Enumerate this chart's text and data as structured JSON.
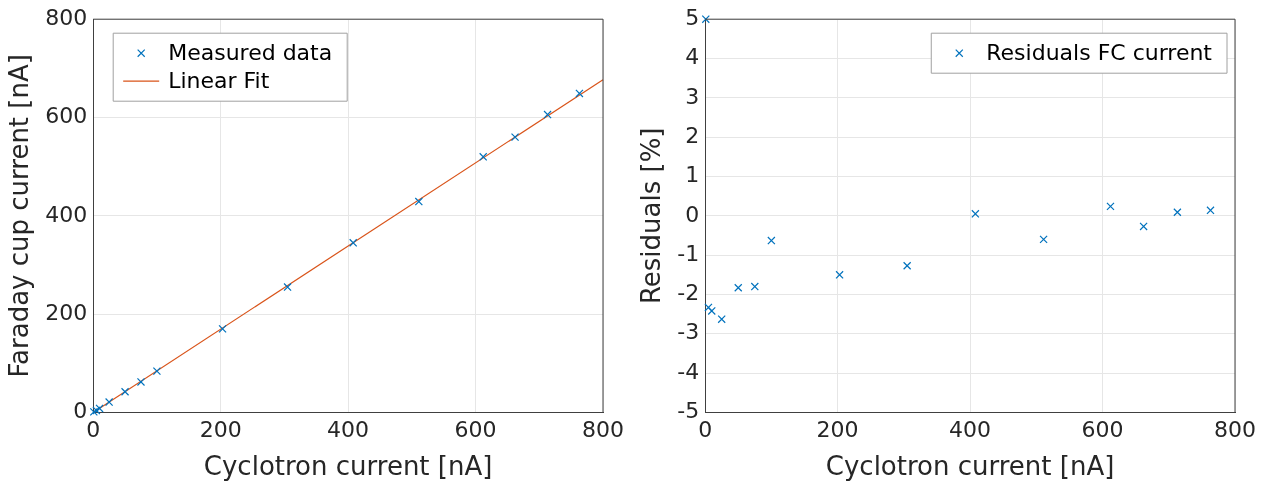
{
  "chart_data": [
    {
      "type": "scatter",
      "xlabel": "Cyclotron current [nA]",
      "ylabel": "Faraday cup current [nA]",
      "xlim": [
        0,
        800
      ],
      "ylim": [
        0,
        800
      ],
      "xticks": [
        0,
        200,
        400,
        600,
        800
      ],
      "yticks": [
        0,
        200,
        400,
        600,
        800
      ],
      "grid": true,
      "legend": "top left",
      "series": [
        {
          "name": "Measured data",
          "type": "scatter",
          "marker": "cross",
          "color": "#0072bd",
          "x": [
            1,
            5,
            10,
            25,
            50,
            75,
            100,
            203,
            305,
            408,
            511,
            612,
            662,
            713,
            763
          ],
          "values": [
            1,
            4,
            8,
            21,
            42,
            62,
            84,
            170,
            255,
            345,
            429,
            520,
            560,
            606,
            649
          ]
        },
        {
          "name": "Linear Fit",
          "type": "line",
          "marker": "none",
          "color": "#d95319",
          "x": [
            0,
            800
          ],
          "values": [
            0,
            677
          ]
        }
      ]
    },
    {
      "type": "scatter",
      "xlabel": "Cyclotron current [nA]",
      "ylabel": "Residuals [%]",
      "xlim": [
        0,
        800
      ],
      "ylim": [
        -5,
        5
      ],
      "xticks": [
        0,
        200,
        400,
        600,
        800
      ],
      "yticks": [
        -5,
        -4,
        -3,
        -2,
        -1,
        0,
        1,
        2,
        3,
        4,
        5
      ],
      "grid": true,
      "legend": "top right",
      "series": [
        {
          "name": "Residuals FC current",
          "type": "scatter",
          "marker": "cross",
          "color": "#0072bd",
          "x": [
            1,
            5,
            10,
            25,
            50,
            75,
            100,
            203,
            305,
            408,
            511,
            612,
            662,
            713,
            763
          ],
          "values": [
            5,
            -2.33,
            -2.42,
            -2.63,
            -1.83,
            -1.8,
            -0.63,
            -1.5,
            -1.27,
            0.05,
            -0.6,
            0.24,
            -0.27,
            0.09,
            0.14
          ]
        }
      ]
    }
  ]
}
